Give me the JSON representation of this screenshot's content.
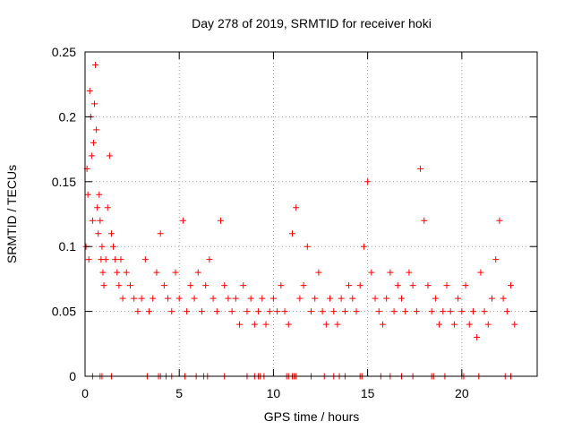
{
  "chart_data": {
    "type": "scatter",
    "title": "Day 278 of 2019, SRMTID for receiver hoki",
    "xlabel": "GPS time / hours",
    "ylabel": "SRMTID / TECUs",
    "xlim": [
      0,
      24
    ],
    "ylim": [
      0,
      0.25
    ],
    "xticks": [
      0,
      5,
      10,
      15,
      20
    ],
    "yticks": [
      0,
      0.05,
      0.1,
      0.15,
      0.2,
      0.25
    ],
    "xtick_labels": [
      "0",
      "5",
      "10",
      "15",
      "20"
    ],
    "ytick_labels": [
      "0",
      "0.05",
      "0.1",
      "0.15",
      "0.2",
      "0.25"
    ],
    "grid": true,
    "marker": "+",
    "series": [
      {
        "name": "SRMTID",
        "color": "#ff0000",
        "x": [
          0.05,
          0.1,
          0.15,
          0.2,
          0.25,
          0.3,
          0.35,
          0.4,
          0.45,
          0.5,
          0.55,
          0.6,
          0.65,
          0.7,
          0.75,
          0.8,
          0.85,
          0.9,
          0.95,
          1.0,
          1.1,
          1.2,
          1.3,
          1.4,
          1.5,
          1.6,
          1.7,
          1.8,
          1.9,
          2.0,
          2.2,
          2.4,
          2.6,
          2.8,
          3.0,
          3.2,
          3.4,
          3.6,
          3.8,
          4.0,
          4.2,
          4.4,
          4.6,
          4.8,
          5.0,
          5.2,
          5.4,
          5.6,
          5.8,
          6.0,
          6.2,
          6.4,
          6.6,
          6.8,
          7.0,
          7.2,
          7.4,
          7.6,
          7.8,
          8.0,
          8.2,
          8.4,
          8.6,
          8.8,
          9.0,
          9.2,
          9.4,
          9.6,
          9.8,
          10.0,
          10.2,
          10.4,
          10.6,
          10.8,
          11.0,
          11.2,
          11.4,
          11.6,
          11.8,
          12.0,
          12.2,
          12.4,
          12.6,
          12.8,
          13.0,
          13.2,
          13.4,
          13.6,
          13.8,
          14.0,
          14.2,
          14.4,
          14.6,
          14.8,
          15.0,
          15.2,
          15.4,
          15.6,
          15.8,
          16.0,
          16.2,
          16.4,
          16.6,
          16.8,
          17.0,
          17.2,
          17.4,
          17.6,
          17.8,
          18.0,
          18.2,
          18.4,
          18.6,
          18.8,
          19.0,
          19.2,
          19.4,
          19.6,
          19.8,
          20.0,
          20.2,
          20.4,
          20.6,
          20.8,
          21.0,
          21.2,
          21.4,
          21.6,
          21.8,
          22.0,
          22.2,
          22.4,
          22.6,
          22.8
        ],
        "y": [
          0.1,
          0.16,
          0.14,
          0.09,
          0.22,
          0.2,
          0.17,
          0.12,
          0.18,
          0.21,
          0.24,
          0.19,
          0.13,
          0.11,
          0.14,
          0.12,
          0.09,
          0.1,
          0.08,
          0.07,
          0.09,
          0.13,
          0.17,
          0.11,
          0.1,
          0.09,
          0.08,
          0.07,
          0.09,
          0.06,
          0.08,
          0.07,
          0.06,
          0.05,
          0.06,
          0.09,
          0.05,
          0.06,
          0.08,
          0.11,
          0.07,
          0.06,
          0.05,
          0.08,
          0.06,
          0.12,
          0.05,
          0.07,
          0.06,
          0.08,
          0.05,
          0.07,
          0.09,
          0.06,
          0.05,
          0.12,
          0.07,
          0.06,
          0.05,
          0.06,
          0.04,
          0.07,
          0.05,
          0.06,
          0.04,
          0.05,
          0.06,
          0.04,
          0.05,
          0.06,
          0.05,
          0.07,
          0.05,
          0.04,
          0.11,
          0.13,
          0.06,
          0.07,
          0.1,
          0.05,
          0.06,
          0.08,
          0.05,
          0.04,
          0.06,
          0.05,
          0.04,
          0.06,
          0.05,
          0.07,
          0.06,
          0.05,
          0.07,
          0.1,
          0.15,
          0.08,
          0.06,
          0.05,
          0.04,
          0.06,
          0.08,
          0.05,
          0.07,
          0.06,
          0.05,
          0.08,
          0.07,
          0.05,
          0.16,
          0.12,
          0.07,
          0.05,
          0.06,
          0.04,
          0.05,
          0.07,
          0.05,
          0.04,
          0.06,
          0.05,
          0.07,
          0.04,
          0.05,
          0.03,
          0.08,
          0.05,
          0.04,
          0.06,
          0.09,
          0.12,
          0.06,
          0.05,
          0.07,
          0.04
        ],
        "zero_x": [
          0.4,
          0.8,
          0.9,
          1.4,
          3.3,
          3.9,
          4.0,
          4.3,
          4.6,
          5.3,
          5.9,
          6.3,
          6.5,
          7.4,
          8.6,
          9.0,
          9.2,
          9.3,
          9.5,
          10.7,
          10.8,
          11.0,
          11.1,
          11.2,
          12.0,
          12.7,
          13.2,
          13.5,
          13.8,
          14.6,
          14.7,
          15.7,
          16.2,
          16.8,
          17.4,
          18.4,
          18.5,
          19.1,
          20.0,
          20.1,
          20.9,
          22.3,
          22.6
        ]
      }
    ]
  }
}
